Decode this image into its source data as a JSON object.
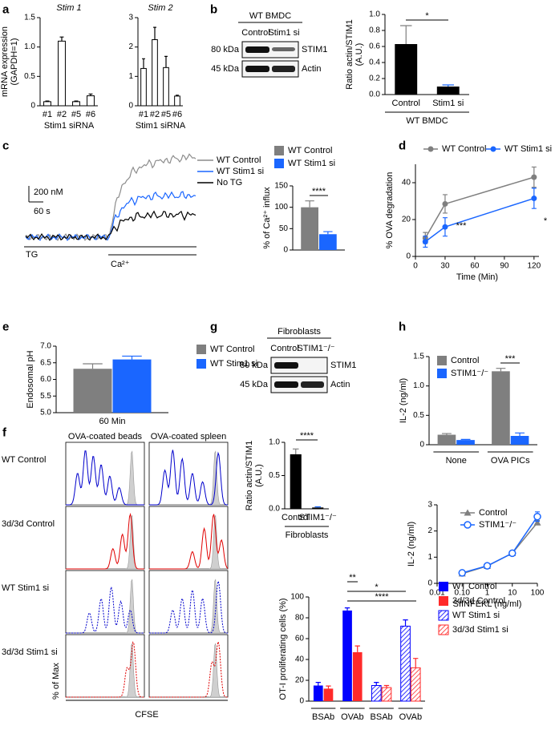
{
  "panel_labels": [
    "a",
    "b",
    "c",
    "d",
    "e",
    "f",
    "g",
    "h"
  ],
  "blot_b": {
    "title": "WT BMDC",
    "lanes": [
      "Control",
      "Stim1 si"
    ],
    "markers": [
      "80 kDa",
      "45 kDa"
    ],
    "proteins": [
      "STIM1",
      "Actin"
    ]
  },
  "trace_c": {
    "scale_y": "200 nM",
    "scale_x": "60 s",
    "legend": [
      {
        "name": "WT Control",
        "color": "#8c8c8c"
      },
      {
        "name": "WT Stim1 si",
        "color": "#1a66ff"
      },
      {
        "name": "No TG",
        "color": "#000000"
      }
    ],
    "stimuli": [
      "TG",
      "Ca²⁺"
    ]
  },
  "blot_g": {
    "title": "Fibroblasts",
    "lanes": [
      "Control",
      "STIM1⁻/⁻"
    ],
    "markers": [
      "80 kDa",
      "45 kDa"
    ],
    "proteins": [
      "STIM1",
      "Actin"
    ]
  },
  "flow_f": {
    "columns": [
      "OVA-coated beads",
      "OVA-coated spleen"
    ],
    "rows": [
      {
        "name": "WT Control",
        "color": "#0000cc",
        "line": "solid"
      },
      {
        "name": "3d/3d Control",
        "color": "#e00000",
        "line": "solid"
      },
      {
        "name": "WT Stim1 si",
        "color": "#0000cc",
        "line": "dotted"
      },
      {
        "name": "3d/3d Stim1 si",
        "color": "#e00000",
        "line": "dotted"
      }
    ],
    "y_label": "% of Max",
    "x_label": "CFSE"
  },
  "chart_data": [
    {
      "type": "bar",
      "title": "Stim 1",
      "y_label": [
        "mRNA expression",
        "(GAPDH=1)"
      ],
      "x_label": "Stim1 siRNA",
      "categories": [
        "#1",
        "#2",
        "#5",
        "#6"
      ],
      "values": [
        0.07,
        1.1,
        0.07,
        0.17
      ],
      "errors": [
        0.01,
        0.07,
        0.01,
        0.03
      ],
      "color": "#ffffff",
      "edgecolor": "#000000",
      "ylim": [
        0,
        1.5
      ],
      "yticks": [
        0,
        0.5,
        {
          "value": 1,
          "label": "1.0"
        },
        1.5
      ]
    },
    {
      "type": "bar",
      "title": "Stim 2",
      "x_label": "Stim1 siRNA",
      "categories": [
        "#1",
        "#2",
        "#5",
        "#6"
      ],
      "values": [
        1.27,
        2.25,
        1.3,
        0.33
      ],
      "errors": [
        0.33,
        0.42,
        0.38,
        0.03
      ],
      "color": "#ffffff",
      "edgecolor": "#000000",
      "ylim": [
        0,
        3
      ],
      "yticks": [
        0,
        1,
        2,
        3
      ]
    },
    {
      "type": "bar",
      "y_label": [
        "Ratio actin/STIM1",
        "(A.U.)"
      ],
      "categories": [
        "Control",
        "Stim1 si"
      ],
      "values": [
        0.63,
        0.1
      ],
      "errors": [
        0.23,
        0.02
      ],
      "colors": [
        "#7f7f7f",
        "#1a66ff"
      ],
      "ylim": [
        0,
        1
      ],
      "yticks": [
        {
          "value": 0,
          "label": "0.0"
        },
        0.2,
        0.4,
        0.6,
        0.8,
        {
          "value": 1,
          "label": "1.0"
        }
      ],
      "group_label": "WT BMDC",
      "annotations": [
        "*"
      ]
    },
    {
      "type": "bar",
      "y_label": [
        "% of Ca²⁺ influx"
      ],
      "categories": [
        null
      ],
      "series": [
        {
          "name": "WT Control",
          "color": "#7f7f7f",
          "values": [
            100
          ],
          "errors": [
            15
          ]
        },
        {
          "name": "WT Stim1 si",
          "color": "#1a66ff",
          "values": [
            37
          ],
          "errors": [
            6
          ]
        }
      ],
      "ylim": [
        0,
        150
      ],
      "yticks": [
        0,
        50,
        100,
        150
      ],
      "annotations": [
        "****"
      ]
    },
    {
      "type": "line",
      "y_label": [
        "% OVA degradation"
      ],
      "x_label": "Time (Min)",
      "x": [
        10,
        30,
        120
      ],
      "series": [
        {
          "name": "WT Control",
          "color": "#7f7f7f",
          "marker": "circle",
          "values": [
            10,
            28.5,
            43
          ],
          "errors": [
            3,
            5,
            5.5
          ]
        },
        {
          "name": "WT Stim1 si",
          "color": "#1a66ff",
          "marker": "circle",
          "values": [
            8,
            16,
            31.5
          ],
          "errors": [
            3,
            5,
            5.5
          ]
        }
      ],
      "xlim": [
        0,
        125
      ],
      "xticks": [
        0,
        30,
        60,
        90,
        120
      ],
      "ylim": [
        0,
        50
      ],
      "yticks": [
        0,
        20,
        40
      ],
      "annotations": [
        "***",
        "*"
      ]
    },
    {
      "type": "bar",
      "y_label": [
        "Endosomal pH"
      ],
      "categories": [
        "60 Min"
      ],
      "series": [
        {
          "name": "WT Control",
          "color": "#7f7f7f",
          "values": [
            6.32
          ],
          "errors": [
            0.15
          ]
        },
        {
          "name": "WT Stim1 si",
          "color": "#1a66ff",
          "values": [
            6.6
          ],
          "errors": [
            0.1
          ]
        }
      ],
      "ylim": [
        5,
        7
      ],
      "yticks": [
        {
          "value": 5,
          "label": "5.0"
        },
        5.5,
        {
          "value": 6,
          "label": "6.0"
        },
        6.5,
        {
          "value": 7,
          "label": "7.0"
        }
      ]
    },
    {
      "type": "bar",
      "y_label": [
        "Ratio actin/STIM1",
        "(A.U.)"
      ],
      "categories": [
        "Control",
        "STIM1⁻/⁻"
      ],
      "values": [
        0.82,
        0.02
      ],
      "errors": [
        0.08,
        0.01
      ],
      "colors": [
        "#7f7f7f",
        "#1a66ff"
      ],
      "ylim": [
        0,
        1
      ],
      "yticks": [
        {
          "value": 0,
          "label": "0.0"
        },
        0.5,
        {
          "value": 1,
          "label": "1.0"
        }
      ],
      "group_label": "Fibroblasts",
      "annotations": [
        "****"
      ]
    },
    {
      "type": "bar",
      "y_label": [
        "IL-2 (ng/ml)"
      ],
      "categories": [
        "None",
        "OVA PICs"
      ],
      "category_lines": true,
      "series": [
        {
          "name": "Control",
          "color": "#7f7f7f",
          "values": [
            0.17,
            1.25
          ],
          "errors": [
            0.02,
            0.05
          ]
        },
        {
          "name": "STIM1⁻/⁻",
          "color": "#1a66ff",
          "values": [
            0.08,
            0.15
          ],
          "errors": [
            0.01,
            0.05
          ]
        }
      ],
      "ylim": [
        0,
        1.5
      ],
      "yticks": [
        0,
        0.5,
        {
          "value": 1,
          "label": "1.0"
        },
        1.5
      ],
      "annotations": [
        "***"
      ]
    },
    {
      "type": "line",
      "log_x": true,
      "y_label": [
        "IL-2 (ng/ml)"
      ],
      "x_label": "SIINFEKL (ng/ml)",
      "x": [
        0.1,
        1,
        10,
        100
      ],
      "series": [
        {
          "name": "Control",
          "color": "#7f7f7f",
          "marker": "triangle",
          "values": [
            0.37,
            0.66,
            1.15,
            2.32
          ],
          "errors": [
            0.03,
            0.04,
            0.05,
            0.08
          ]
        },
        {
          "name": "STIM1⁻/⁻",
          "color": "#1a66ff",
          "marker": "open-circle",
          "values": [
            0.4,
            0.67,
            1.15,
            2.55
          ],
          "errors": [
            0.03,
            0.04,
            0.05,
            0.18
          ]
        }
      ],
      "xlim": [
        0.01,
        100
      ],
      "xticks": [
        0.01,
        {
          "value": 0.1,
          "label": "0.10"
        },
        1,
        10,
        100
      ],
      "ylim": [
        0,
        3
      ],
      "yticks": [
        0,
        1,
        2,
        3
      ]
    },
    {
      "type": "bar",
      "y_label": [
        "OT-I proliferating cells (%)"
      ],
      "categories": [
        "BSAb",
        "OVAb",
        "BSAb",
        "OVAb"
      ],
      "category_lines": true,
      "series": [
        {
          "name": "WT Control",
          "color": "#0000ff",
          "values": [
            15,
            87,
            null,
            null
          ],
          "errors": [
            3,
            2.5,
            null,
            null
          ]
        },
        {
          "name": "3d/3d Control",
          "color": "#ff2a2a",
          "values": [
            12,
            47,
            null,
            null
          ],
          "errors": [
            2.5,
            6,
            null,
            null
          ]
        },
        {
          "name": "WT Stim1 si",
          "color": "#0000ff",
          "pattern": "hatch",
          "values": [
            null,
            null,
            15,
            72
          ],
          "errors": [
            null,
            null,
            3,
            6
          ]
        },
        {
          "name": "3d/3d Stim1 si",
          "color": "#ff2a2a",
          "pattern": "hatch",
          "values": [
            null,
            null,
            13,
            32
          ],
          "errors": [
            null,
            null,
            2,
            9
          ]
        }
      ],
      "ylim": [
        0,
        100
      ],
      "yticks": [
        0,
        20,
        40,
        60,
        80,
        100
      ],
      "annotations": [
        "**",
        "*",
        "****"
      ]
    }
  ]
}
